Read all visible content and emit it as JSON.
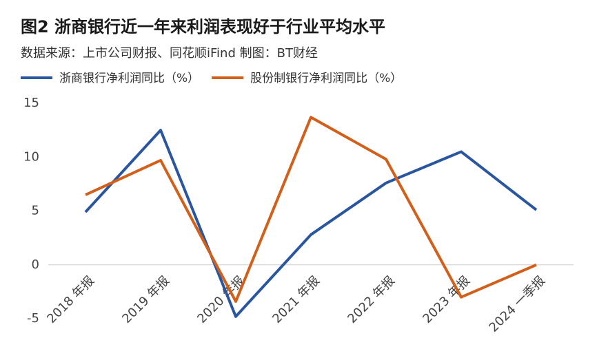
{
  "chart_data": {
    "type": "line",
    "title": "图2 浙商银行近一年来利润表现好于行业平均水平",
    "subtitle": "数据来源：上市公司财报、同花顺iFind   制图：BT财经",
    "categories": [
      "2018 年报",
      "2019 年报",
      "2020 年报",
      "2021 年报",
      "2022 年报",
      "2023 年报",
      "2024 一季报"
    ],
    "series": [
      {
        "name": "浙商银行净利润同比（%）",
        "color": "#2a56a0",
        "values": [
          4.9,
          12.5,
          -4.8,
          2.8,
          7.6,
          10.5,
          5.1
        ]
      },
      {
        "name": "股份制银行净利润同比（%）",
        "color": "#d2601a",
        "values": [
          6.5,
          9.7,
          -3.4,
          13.7,
          9.8,
          -3.0,
          0.0
        ]
      }
    ],
    "ylim": [
      -5,
      15
    ],
    "yticks": [
      -5,
      0,
      5,
      10,
      15
    ],
    "grid": false,
    "legend": "top"
  }
}
